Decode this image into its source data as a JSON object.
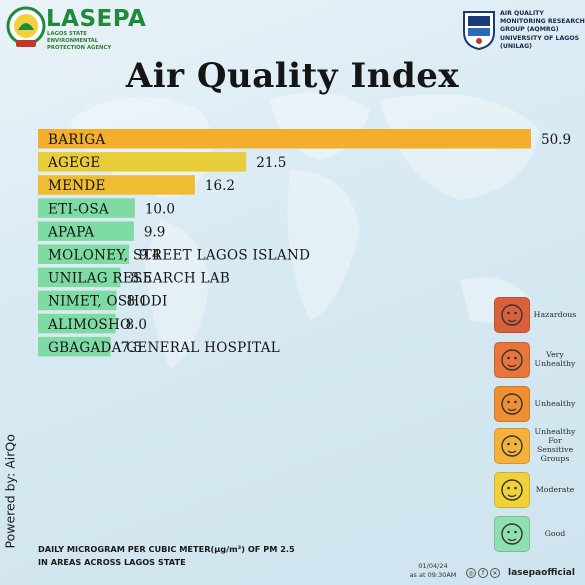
{
  "header": {
    "org_name": "LASEPA",
    "org_subtitle": "LAGOS STATE ENVIRONMENTAL PROTECTION AGENCY",
    "partner_text": "AIR QUALITY MONITORING RESEARCH GROUP (AQMRG) UNIVERSITY OF LAGOS (UNILAG)"
  },
  "chart_data": {
    "type": "bar",
    "orientation": "horizontal",
    "title": "Air Quality Index",
    "categories": [
      "BARIGA",
      "AGEGE",
      "MENDE",
      "ETI-OSA",
      "APAPA",
      "MOLONEY, STREET LAGOS ISLAND",
      "UNILAG RESEARCH LAB",
      "NIMET, OSHODI",
      "ALIMOSHO",
      "GBAGADA GENERAL HOSPITAL"
    ],
    "values": [
      50.9,
      21.5,
      16.2,
      10.0,
      9.9,
      9.4,
      8.5,
      8.1,
      8.0,
      7.5
    ],
    "value_labels": [
      "50.9",
      "21.5",
      "16.2",
      "10.0",
      "9.9",
      "9.4",
      "8.5",
      "8.1",
      "8.0",
      "7.5"
    ],
    "bar_colors": [
      "#f2ae2c",
      "#e8cc3a",
      "#f0bc32",
      "#7fdba4",
      "#7fdba4",
      "#7fdba4",
      "#7fdba4",
      "#7fdba4",
      "#7fdba4",
      "#7fdba4"
    ],
    "legend_placement": "right",
    "grid": false
  },
  "legend": [
    {
      "label": "Hazardous",
      "color": "#d9603b",
      "icon": "face-hazardous-icon"
    },
    {
      "label": "Very Unhealthy",
      "color": "#e8763a",
      "icon": "face-very-unhealthy-icon"
    },
    {
      "label": "Unhealthy",
      "color": "#ef8f32",
      "icon": "face-unhealthy-icon"
    },
    {
      "label": "Unhealthy For Sensitive Groups",
      "color": "#f3b23a",
      "icon": "face-sensitive-icon"
    },
    {
      "label": "Moderate",
      "color": "#f1d13a",
      "icon": "face-moderate-icon"
    },
    {
      "label": "Good",
      "color": "#8fe0b0",
      "icon": "face-good-icon"
    }
  ],
  "footer": {
    "powered_by": "Powered by: AirQo",
    "note_line1": "DAILY MICROGRAM PER CUBIC METER(μg/m³) OF PM 2.5",
    "note_line2": "IN AREAS ACROSS LAGOS STATE",
    "date": "01/04/24",
    "time": "as at 09:30AM",
    "handle": "lasepaofficial"
  }
}
